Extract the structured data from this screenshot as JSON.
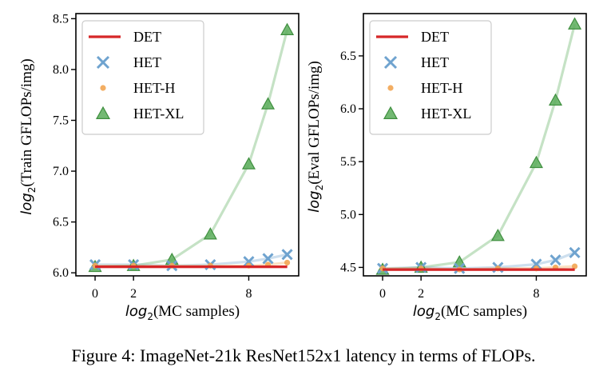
{
  "chart_data": [
    {
      "type": "line",
      "ylabel_prefix": "log",
      "ylabel_sub": "2",
      "ylabel_rest": "(Train GFLOPs/img)",
      "xlabel_prefix": "log",
      "xlabel_sub": "2",
      "xlabel_rest": "(MC samples)",
      "xlim": [
        -1,
        10.6
      ],
      "ylim": [
        5.97,
        8.55
      ],
      "xticks": [
        0,
        2,
        8
      ],
      "yticks": [
        6.0,
        6.5,
        7.0,
        7.5,
        8.0,
        8.5
      ],
      "ytick_labels": [
        "6.0",
        "6.5",
        "7.0",
        "7.5",
        "8.0",
        "8.5"
      ],
      "legend_position": "upper-left",
      "series": [
        {
          "name": "DET",
          "marker": "line",
          "color": "#d62728",
          "x": [
            0,
            10
          ],
          "y": [
            6.06,
            6.06
          ]
        },
        {
          "name": "HET",
          "marker": "x",
          "color": "#6fa3cf",
          "x": [
            0,
            2,
            4,
            6,
            8,
            9,
            10
          ],
          "y": [
            6.08,
            6.08,
            6.07,
            6.08,
            6.11,
            6.14,
            6.18
          ]
        },
        {
          "name": "HET-H",
          "marker": "dot",
          "color": "#f2a552",
          "x": [
            0,
            2,
            4,
            6,
            8,
            9,
            10
          ],
          "y": [
            6.07,
            6.07,
            6.07,
            6.07,
            6.07,
            6.08,
            6.1
          ]
        },
        {
          "name": "HET-XL",
          "marker": "triangle",
          "color": "#5aad5a",
          "x": [
            0,
            2,
            4,
            6,
            8,
            9,
            10
          ],
          "y": [
            6.06,
            6.07,
            6.13,
            6.38,
            7.07,
            7.66,
            8.39
          ]
        }
      ]
    },
    {
      "type": "line",
      "ylabel_prefix": "log",
      "ylabel_sub": "2",
      "ylabel_rest": "(Eval GFLOPs/img)",
      "xlabel_prefix": "log",
      "xlabel_sub": "2",
      "xlabel_rest": "(MC samples)",
      "xlim": [
        -1,
        10.6
      ],
      "ylim": [
        4.42,
        6.9
      ],
      "xticks": [
        0,
        2,
        8
      ],
      "yticks": [
        4.5,
        5.0,
        5.5,
        6.0,
        6.5
      ],
      "ytick_labels": [
        "4.5",
        "5.0",
        "5.5",
        "6.0",
        "6.5"
      ],
      "legend_position": "upper-left",
      "series": [
        {
          "name": "DET",
          "marker": "line",
          "color": "#d62728",
          "x": [
            0,
            10
          ],
          "y": [
            4.48,
            4.48
          ]
        },
        {
          "name": "HET",
          "marker": "x",
          "color": "#6fa3cf",
          "x": [
            0,
            2,
            4,
            6,
            8,
            9,
            10
          ],
          "y": [
            4.49,
            4.5,
            4.49,
            4.5,
            4.53,
            4.57,
            4.64
          ]
        },
        {
          "name": "HET-H",
          "marker": "dot",
          "color": "#f2a552",
          "x": [
            0,
            2,
            4,
            6,
            8,
            9,
            10
          ],
          "y": [
            4.49,
            4.49,
            4.48,
            4.49,
            4.49,
            4.5,
            4.51
          ]
        },
        {
          "name": "HET-XL",
          "marker": "triangle",
          "color": "#5aad5a",
          "x": [
            0,
            2,
            4,
            6,
            8,
            9,
            10
          ],
          "y": [
            4.48,
            4.5,
            4.55,
            4.8,
            5.49,
            6.08,
            6.8
          ]
        }
      ]
    }
  ],
  "caption": "Figure 4: ImageNet-21k ResNet152x1 latency in terms of FLOPs."
}
